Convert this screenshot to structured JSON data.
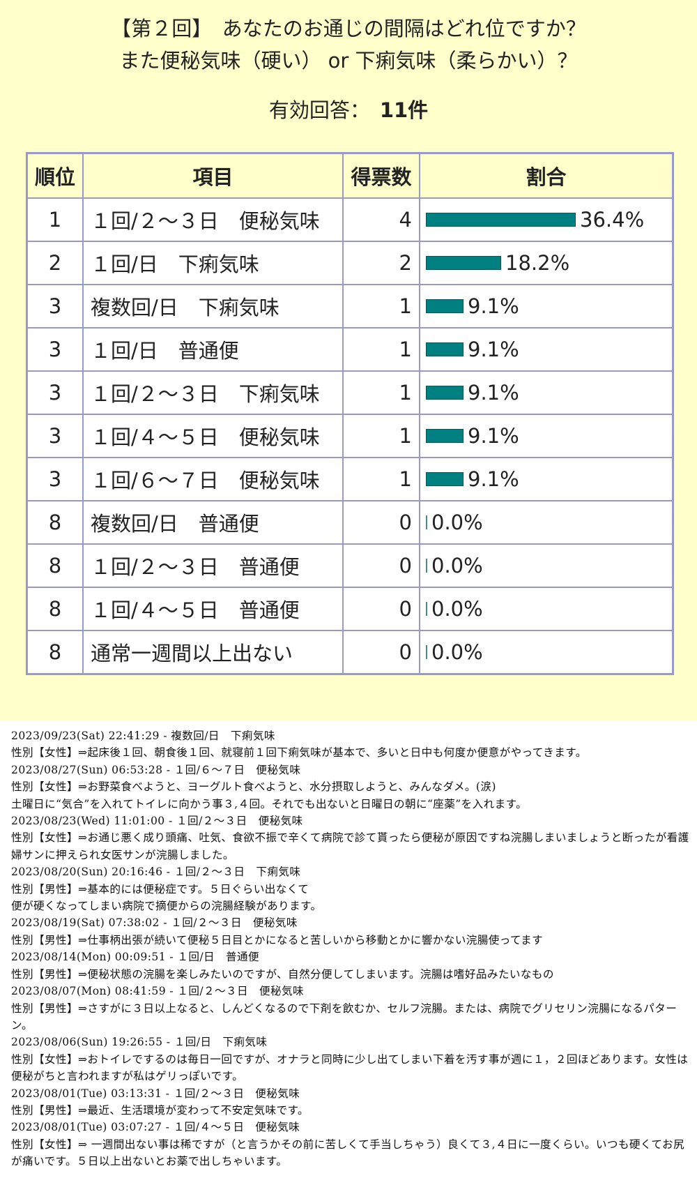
{
  "poll": {
    "title_line1": "【第２回】　あなたのお通じの間隔はどれ位ですか？",
    "title_line2": "また便秘気味（硬い） or 下痢気味（柔らかい）？",
    "valid_label": "有効回答：",
    "valid_count": "11件",
    "headers": {
      "rank": "順位",
      "item": "項目",
      "votes": "得票数",
      "ratio": "割合"
    },
    "bar_color": "#008080",
    "rows": [
      {
        "rank": "1",
        "item": "１回/２～３日　便秘気味",
        "votes": "4",
        "pct": "36.4%",
        "fraction": 0.364
      },
      {
        "rank": "2",
        "item": "１回/日　下痢気味",
        "votes": "2",
        "pct": "18.2%",
        "fraction": 0.182
      },
      {
        "rank": "3",
        "item": "複数回/日　下痢気味",
        "votes": "1",
        "pct": "9.1%",
        "fraction": 0.091
      },
      {
        "rank": "3",
        "item": "１回/日　普通便",
        "votes": "1",
        "pct": "9.1%",
        "fraction": 0.091
      },
      {
        "rank": "3",
        "item": "１回/２～３日　下痢気味",
        "votes": "1",
        "pct": "9.1%",
        "fraction": 0.091
      },
      {
        "rank": "3",
        "item": "１回/４～５日　便秘気味",
        "votes": "1",
        "pct": "9.1%",
        "fraction": 0.091
      },
      {
        "rank": "3",
        "item": "１回/６～７日　便秘気味",
        "votes": "1",
        "pct": "9.1%",
        "fraction": 0.091
      },
      {
        "rank": "8",
        "item": "複数回/日　普通便",
        "votes": "0",
        "pct": "0.0%",
        "fraction": 0
      },
      {
        "rank": "8",
        "item": "１回/２～３日　普通便",
        "votes": "0",
        "pct": "0.0%",
        "fraction": 0
      },
      {
        "rank": "8",
        "item": "１回/４～５日　普通便",
        "votes": "0",
        "pct": "0.0%",
        "fraction": 0
      },
      {
        "rank": "8",
        "item": "通常一週間以上出ない",
        "votes": "0",
        "pct": "0.0%",
        "fraction": 0
      }
    ]
  },
  "comments": [
    {
      "header": "2023/09/23(Sat) 22:41:29 - 複数回/日　下痢気味",
      "body": "性別【女性】⇒起床後１回、朝食後１回、就寝前１回下痢気味が基本で、多いと日中も何度か便意がやってきます。"
    },
    {
      "header": "2023/08/27(Sun) 06:53:28 - １回/６～７日　便秘気味",
      "body": "性別【女性】⇒お野菜食べようと、ヨーグルト食べようと、水分摂取しようと、みんなダメ。(涙)\n土曜日に“気合”を入れてトイレに向かう事３,４回。それでも出ないと日曜日の朝に“座薬”を入れます。"
    },
    {
      "header": "2023/08/23(Wed) 11:01:00 - １回/２～３日　便秘気味",
      "body": "性別【女性】⇒お通じ悪く成り頭痛、吐気、食欲不振で辛くて病院で診て貰ったら便秘が原因ですね浣腸しまいましょうと断ったが看護婦サンに押えられ女医サンが浣腸しました。"
    },
    {
      "header": "2023/08/20(Sun) 20:16:46 - １回/２～３日　下痢気味",
      "body": "性別【男性】⇒基本的には便秘症です。５日ぐらい出なくて\n便が硬くなってしまい病院で摘便からの浣腸経験があります。"
    },
    {
      "header": "2023/08/19(Sat) 07:38:02 - １回/２～３日　便秘気味",
      "body": "性別【男性】⇒仕事柄出張が続いて便秘５日目とかになると苦しいから移動とかに響かない浣腸使ってます"
    },
    {
      "header": "2023/08/14(Mon) 00:09:51 - １回/日　普通便",
      "body": "性別【男性】⇒便秘状態の浣腸を楽しみたいのですが、自然分便してしまいます。浣腸は嗜好品みたいなもの"
    },
    {
      "header": "2023/08/07(Mon) 08:41:59 - １回/２～３日　便秘気味",
      "body": "性別【男性】⇒さすがに３日以上なると、しんどくなるので下剤を飲むか、セルフ浣腸。または、病院でグリセリン浣腸になるパターン。"
    },
    {
      "header": "2023/08/06(Sun) 19:26:55 - １回/日　下痢気味",
      "body": "性別【女性】⇒おトイレでするのは毎日一回ですが、オナラと同時に少し出てしまい下着を汚す事が週に１，２回ほどあります。女性は便秘がちと言われますが私はゲリっぽいです。"
    },
    {
      "header": "2023/08/01(Tue) 03:13:31 - １回/２～３日　便秘気味",
      "body": "性別【男性】⇒最近、生活環境が変わって不安定気味です。"
    },
    {
      "header": "2023/08/01(Tue) 03:07:27 - １回/４～５日　便秘気味",
      "body": "性別【女性】⇒ 一週間出ない事は稀ですが（と言うかその前に苦しくて手当しちゃう）良くて３,４日に一度くらい。いつも硬くてお尻が痛いです。５日以上出ないとお薬で出しちゃいます。"
    }
  ]
}
